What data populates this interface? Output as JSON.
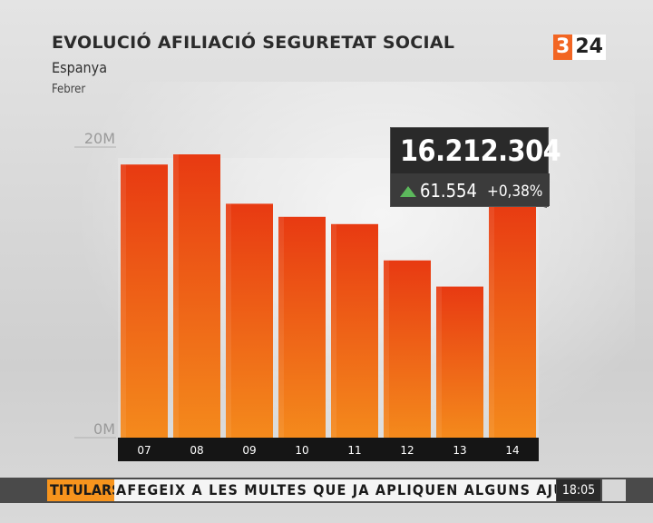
{
  "header": {
    "title": "EVOLUCIÓ AFILIACIÓ SEGURETAT SOCIAL",
    "subtitle": "Espanya",
    "period": "Febrer"
  },
  "logo": {
    "part_a": "3",
    "part_b": "24"
  },
  "chart_data": {
    "type": "bar",
    "title": "EVOLUCIÓ AFILIACIÓ SEGURETAT SOCIAL",
    "categories": [
      "07",
      "08",
      "09",
      "10",
      "11",
      "12",
      "13",
      "14"
    ],
    "values": [
      18.8,
      19.5,
      16.1,
      15.2,
      14.7,
      12.2,
      10.4,
      16.212304
    ],
    "ylim": [
      0,
      20
    ],
    "y_ticks": [
      {
        "label": "0M",
        "value": 0
      },
      {
        "label": "20M",
        "value": 20
      }
    ],
    "bar_color_top": "#e83a12",
    "bar_color_bottom": "#f48a1c",
    "annotation": {
      "category": "14",
      "total": "16.212.304",
      "delta": "61.554",
      "percent": "+0,38%",
      "trend": "up"
    }
  },
  "ticker": {
    "label": "TITULARS",
    "text": "AFEGEIX A LES MULTES QUE JA APLIQUEN ALGUNS AJUNTA",
    "time": "18:05"
  },
  "colors": {
    "accent": "#f26522",
    "ticker_label": "#f7941d",
    "trend_up": "#5cb85c",
    "callout_bg": "#2a2a2a"
  }
}
